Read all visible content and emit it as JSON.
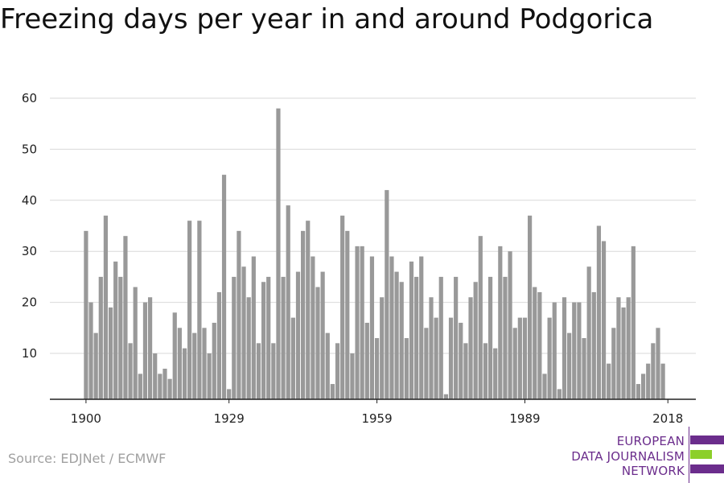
{
  "title": "Freezing days per year in and around Podgorica",
  "source": "Source: EDJNet / ECMWF",
  "logo": {
    "lines": [
      "EUROPEAN",
      "DATA JOURNALISM",
      "NETWORK"
    ]
  },
  "colors": {
    "bar": "#999999",
    "grid": "#d9d9d9",
    "axis": "#222222",
    "logo_purple": "#6b2d8c",
    "logo_green": "#8ccf2a"
  },
  "chart_data": {
    "type": "bar",
    "title": "Freezing days per year in and around Podgorica",
    "xlabel": "",
    "ylabel": "",
    "ylim": [
      0,
      60
    ],
    "yticks": [
      10,
      20,
      30,
      40,
      50,
      60
    ],
    "xticks": [
      1900,
      1929,
      1959,
      1989,
      2018
    ],
    "grid": true,
    "legend": "none",
    "first_year": 1900,
    "values": [
      34,
      20,
      14,
      25,
      37,
      19,
      28,
      25,
      33,
      12,
      23,
      6,
      20,
      21,
      10,
      6,
      7,
      5,
      18,
      15,
      11,
      36,
      14,
      36,
      15,
      10,
      16,
      22,
      45,
      3,
      25,
      34,
      27,
      21,
      29,
      12,
      24,
      25,
      12,
      58,
      25,
      39,
      17,
      26,
      34,
      36,
      29,
      23,
      26,
      14,
      4,
      12,
      37,
      34,
      10,
      31,
      31,
      16,
      29,
      13,
      21,
      42,
      29,
      26,
      24,
      13,
      28,
      25,
      29,
      15,
      21,
      17,
      25,
      2,
      17,
      25,
      16,
      12,
      21,
      24,
      33,
      12,
      25,
      11,
      31,
      25,
      30,
      15,
      17,
      17,
      37,
      23,
      22,
      6,
      17,
      20,
      3,
      21,
      14,
      20,
      20,
      13,
      27,
      22,
      35,
      32,
      8,
      15,
      21,
      19,
      21,
      31,
      4,
      6,
      8,
      12,
      15,
      8
    ]
  }
}
